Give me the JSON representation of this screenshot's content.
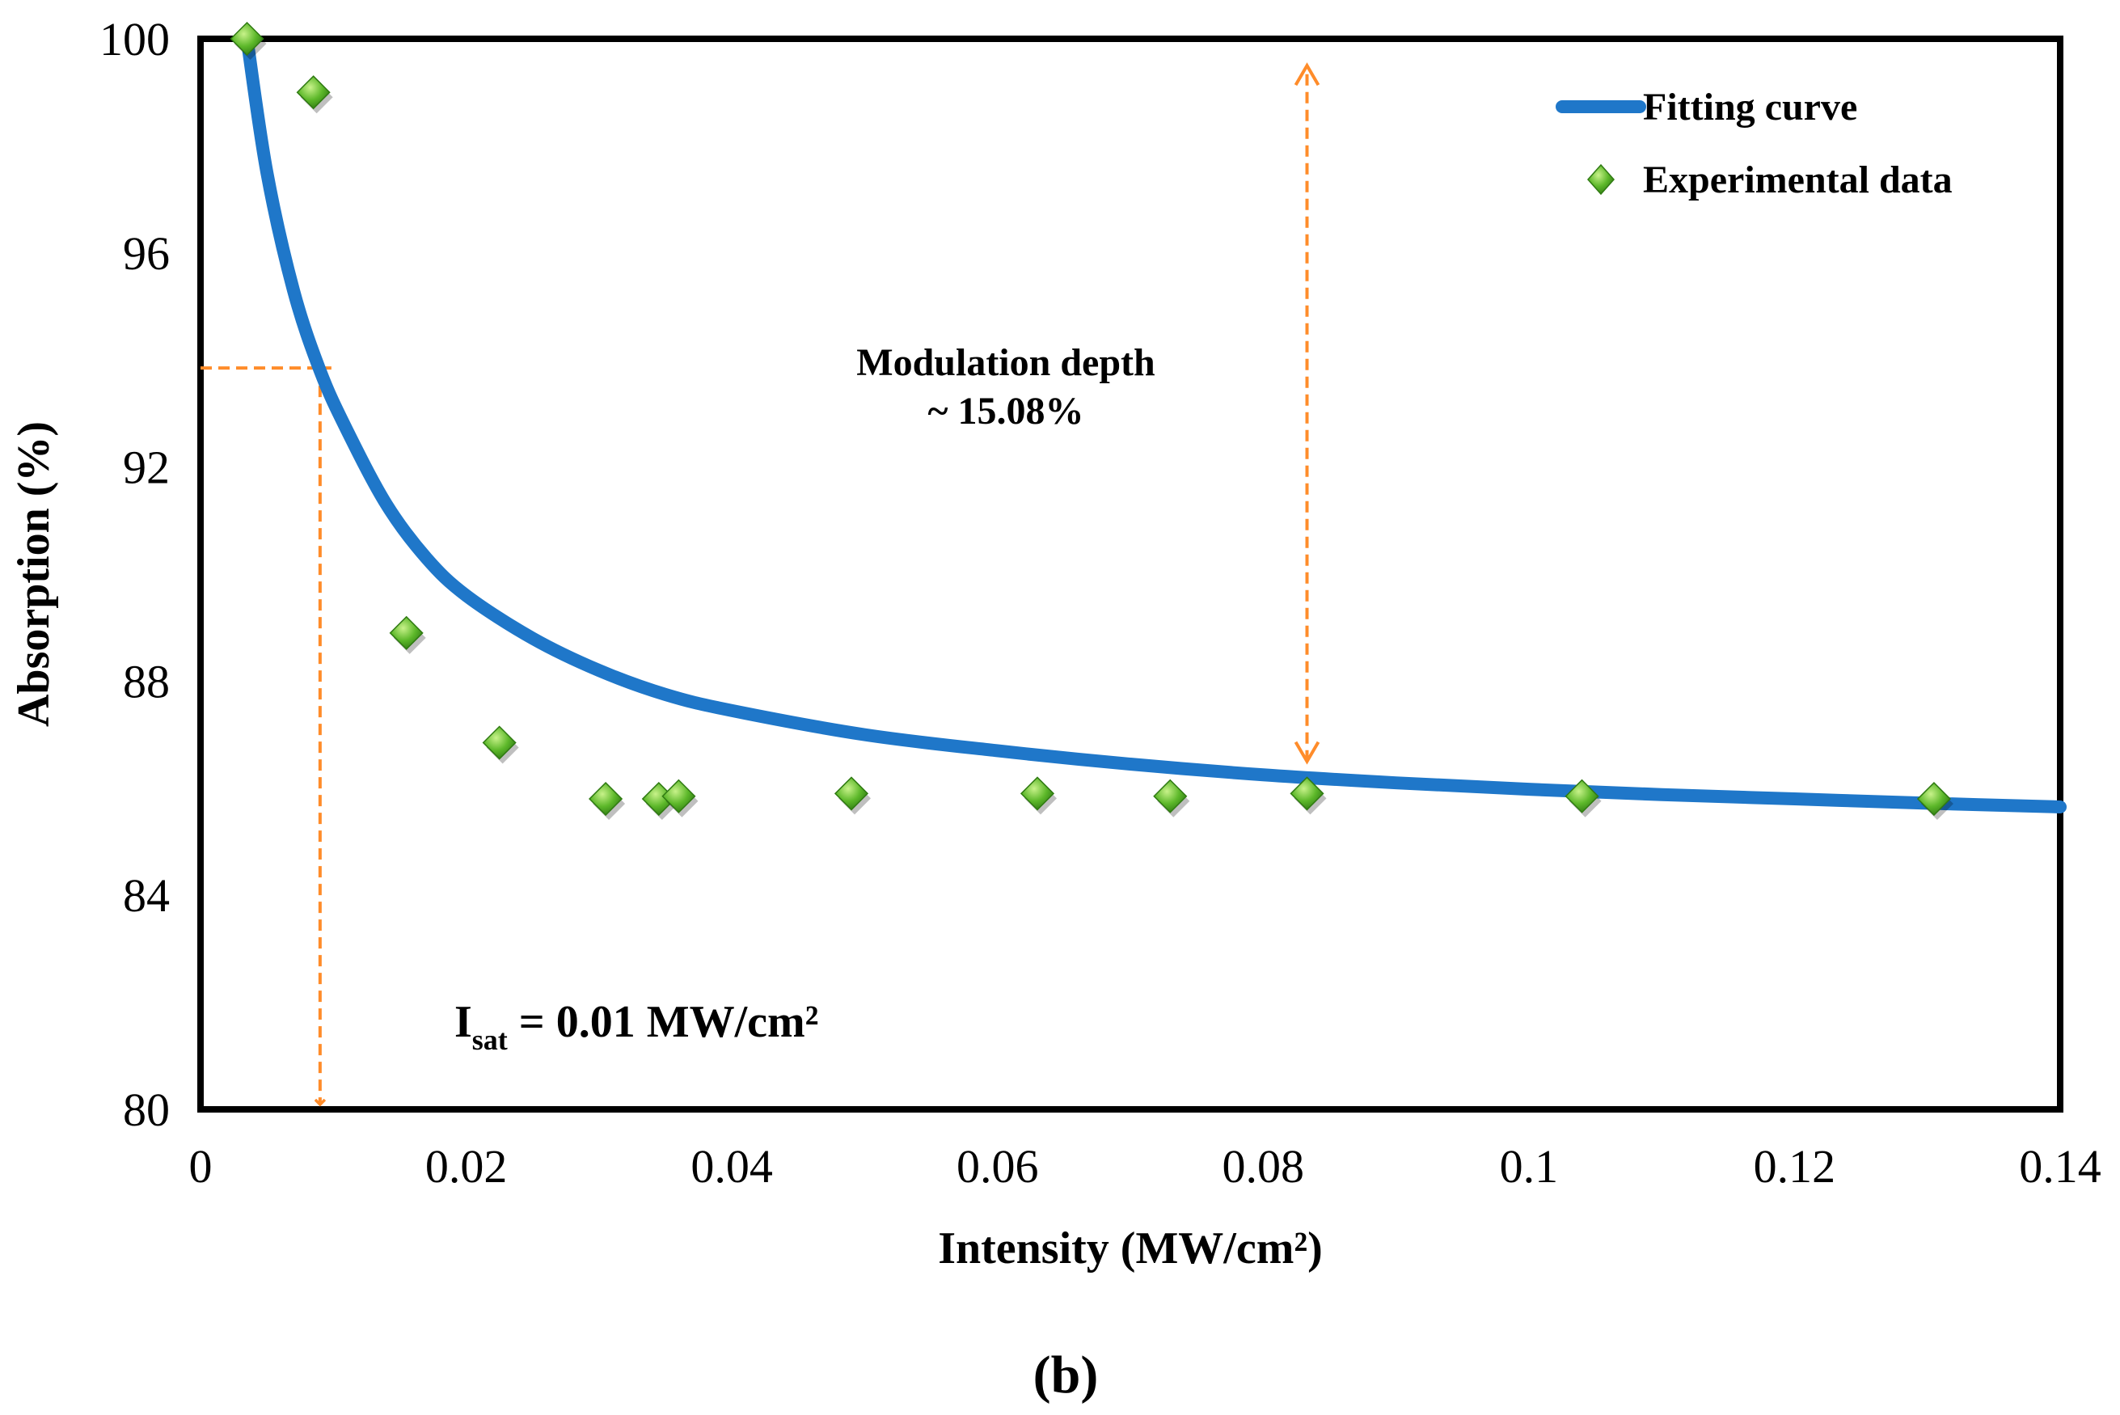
{
  "chart_data": {
    "type": "scatter",
    "title": "",
    "xlabel": "Intensity (MW/cm²)",
    "ylabel": "Absorption (%)",
    "xlim": [
      0,
      0.14
    ],
    "ylim": [
      80,
      100
    ],
    "x_ticks": [
      0,
      0.02,
      0.04,
      0.06,
      0.08,
      0.1,
      0.12,
      0.14
    ],
    "x_tick_labels": [
      "0",
      "0.02",
      "0.04",
      "0.06",
      "0.08",
      "0.1",
      "0.12",
      "0.14"
    ],
    "y_ticks": [
      80,
      84,
      88,
      92,
      96,
      100
    ],
    "y_tick_labels": [
      "80",
      "84",
      "88",
      "92",
      "96",
      "100"
    ],
    "grid": false,
    "legend_position": "top-right",
    "series": [
      {
        "name": "Fitting curve",
        "kind": "line",
        "color": "#1f77c9",
        "x": [
          0.0035,
          0.005,
          0.007,
          0.009,
          0.011,
          0.014,
          0.017,
          0.02,
          0.025,
          0.03,
          0.035,
          0.04,
          0.05,
          0.06,
          0.07,
          0.08,
          0.09,
          0.1,
          0.11,
          0.12,
          0.13,
          0.14
        ],
        "y": [
          100.0,
          97.5,
          95.3,
          93.8,
          92.7,
          91.3,
          90.3,
          89.6,
          88.8,
          88.2,
          87.75,
          87.45,
          87.0,
          86.7,
          86.45,
          86.25,
          86.1,
          85.98,
          85.88,
          85.8,
          85.72,
          85.65
        ]
      },
      {
        "name": "Experimental data",
        "kind": "scatter",
        "color": "#4caf1e",
        "x": [
          0.0035,
          0.0085,
          0.0155,
          0.0225,
          0.0305,
          0.0345,
          0.036,
          0.049,
          0.063,
          0.073,
          0.0833,
          0.104,
          0.1305
        ],
        "y": [
          100.0,
          99.0,
          88.9,
          86.85,
          85.8,
          85.8,
          85.85,
          85.9,
          85.9,
          85.85,
          85.9,
          85.85,
          85.8
        ]
      }
    ],
    "annotations": {
      "modulation_depth_label_line1": "Modulation depth",
      "modulation_depth_label_line2": "~ 15.08%",
      "modulation_depth_arrow": {
        "x": 0.0833,
        "y_from": 86.5,
        "y_to": 99.5,
        "color": "#ff8c2a"
      },
      "isat_label_main": "I",
      "isat_label_sub": "sat",
      "isat_label_rest": " = 0.01 MW/cm²",
      "isat_guide": {
        "x": 0.009,
        "y": 93.85,
        "color": "#ff8c2a"
      }
    }
  },
  "panel_label": "(b)"
}
